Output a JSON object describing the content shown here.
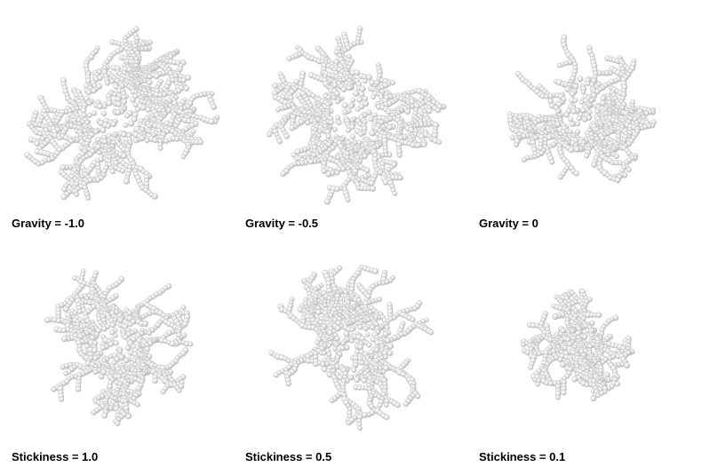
{
  "panels": [
    {
      "label": "Gravity = -1.0"
    },
    {
      "label": "Gravity = -0.5"
    },
    {
      "label": "Gravity = 0"
    },
    {
      "label": "Stickiness = 1.0"
    },
    {
      "label": "Stickiness = 0.5"
    },
    {
      "label": "Stickiness = 0.1"
    }
  ],
  "colors": {
    "background": "#ffffff",
    "sphere": "#e3e3e3",
    "sphere_shadow": "#a8a8a8",
    "text": "#000000"
  }
}
